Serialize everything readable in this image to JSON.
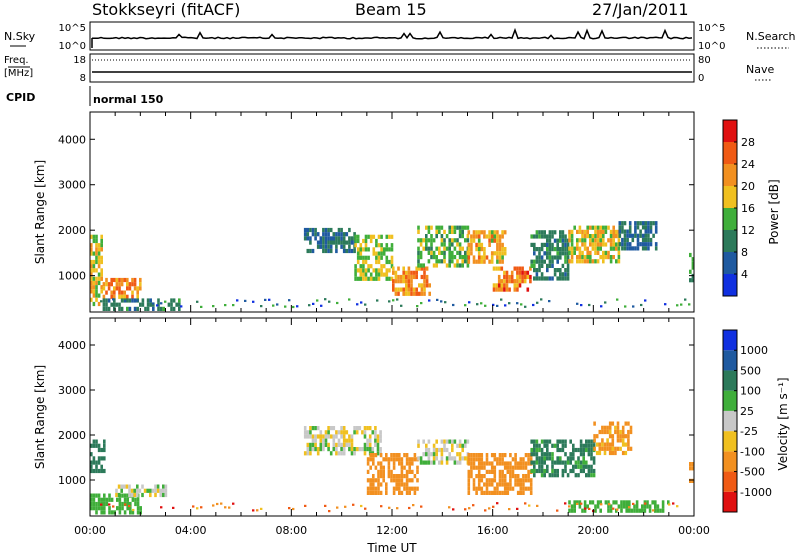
{
  "header": {
    "station": "Stokkseyri (fitACF)",
    "beam": "Beam 15",
    "date": "27/Jan/2011"
  },
  "nsky_panel": {
    "left_label": "N.Sky",
    "left_ticks": [
      "10^5",
      "10^0"
    ],
    "right_label": "N.Search",
    "right_ticks": [
      "10^5",
      "10^0"
    ]
  },
  "freq_panel": {
    "left_label_line1": "Freq.",
    "left_label_line2": "[MHz]",
    "left_ticks": [
      "18",
      "8"
    ],
    "right_label": "Nave",
    "right_ticks": [
      "80",
      "0"
    ]
  },
  "cpid": {
    "label": "CPID",
    "mode": "normal 150"
  },
  "colors": {
    "power_scale": [
      "#1030e0",
      "#1f5aa0",
      "#2c7a5a",
      "#3fae3a",
      "#f0c020",
      "#f29020",
      "#f05a14",
      "#e01010"
    ],
    "velocity_scale": [
      "#e01010",
      "#f05a14",
      "#f29020",
      "#f0c020",
      "#c8c8c8",
      "#3fae3a",
      "#2c7a5a",
      "#1f5aa0",
      "#1030e0"
    ]
  },
  "chart_data": [
    {
      "type": "heatmap",
      "panel": "power",
      "ylabel": "Slant Range [km]",
      "yticks": [
        "1000",
        "2000",
        "3000",
        "4000"
      ],
      "ylim": [
        200,
        4600
      ],
      "xlim": [
        0,
        24
      ],
      "colorbar": {
        "label": "Power [dB]",
        "ticks": [
          "4",
          "8",
          "12",
          "16",
          "20",
          "24",
          "28"
        ],
        "range": [
          0,
          32
        ]
      },
      "regions": [
        {
          "t0": 0.0,
          "t1": 0.5,
          "r0": 400,
          "r1": 1900,
          "value": 18
        },
        {
          "t0": 0.5,
          "t1": 2.0,
          "r0": 500,
          "r1": 950,
          "value": 22
        },
        {
          "t0": 0.5,
          "t1": 3.5,
          "r0": 250,
          "r1": 500,
          "value": 10
        },
        {
          "t0": 8.5,
          "t1": 10.5,
          "r0": 1550,
          "r1": 2050,
          "value": 8
        },
        {
          "t0": 10.5,
          "t1": 12.0,
          "r0": 950,
          "r1": 1900,
          "value": 16
        },
        {
          "t0": 12.0,
          "t1": 13.5,
          "r0": 600,
          "r1": 1200,
          "value": 22
        },
        {
          "t0": 13.0,
          "t1": 15.0,
          "r0": 1200,
          "r1": 2100,
          "value": 14
        },
        {
          "t0": 15.0,
          "t1": 16.5,
          "r0": 1300,
          "r1": 2000,
          "value": 20
        },
        {
          "t0": 16.0,
          "t1": 17.5,
          "r0": 650,
          "r1": 1200,
          "value": 24
        },
        {
          "t0": 17.5,
          "t1": 19.0,
          "r0": 900,
          "r1": 2000,
          "value": 10
        },
        {
          "t0": 19.0,
          "t1": 21.0,
          "r0": 1300,
          "r1": 2100,
          "value": 18
        },
        {
          "t0": 21.0,
          "t1": 22.5,
          "r0": 1600,
          "r1": 2200,
          "value": 8
        },
        {
          "t0": 23.8,
          "t1": 24.0,
          "r0": 900,
          "r1": 1500,
          "value": 12
        }
      ]
    },
    {
      "type": "heatmap",
      "panel": "velocity",
      "ylabel": "Slant Range [km]",
      "yticks": [
        "1000",
        "2000",
        "3000",
        "4000"
      ],
      "ylim": [
        200,
        4600
      ],
      "xlim": [
        0,
        24
      ],
      "xticks": [
        "00:00",
        "04:00",
        "08:00",
        "12:00",
        "16:00",
        "20:00",
        "00:00"
      ],
      "xlabel": "Time UT",
      "colorbar": {
        "label": "Velocity [m s⁻¹]",
        "ticks": [
          "1000",
          "500",
          "100",
          "25",
          "-25",
          "-100",
          "-500",
          "-1000"
        ],
        "range": [
          -1200,
          1200
        ]
      },
      "regions": [
        {
          "t0": 0.0,
          "t1": 0.6,
          "r0": 1200,
          "r1": 1900,
          "value": 300
        },
        {
          "t0": 0.0,
          "t1": 2.0,
          "r0": 300,
          "r1": 700,
          "value": 80
        },
        {
          "t0": 1.0,
          "t1": 3.0,
          "r0": 700,
          "r1": 900,
          "value": 0
        },
        {
          "t0": 8.5,
          "t1": 11.5,
          "r0": 1600,
          "r1": 2200,
          "value": 0
        },
        {
          "t0": 11.0,
          "t1": 13.0,
          "r0": 700,
          "r1": 1600,
          "value": -150
        },
        {
          "t0": 13.0,
          "t1": 15.0,
          "r0": 1400,
          "r1": 1900,
          "value": 0
        },
        {
          "t0": 15.0,
          "t1": 17.5,
          "r0": 700,
          "r1": 1600,
          "value": -300
        },
        {
          "t0": 17.5,
          "t1": 20.0,
          "r0": 1100,
          "r1": 1900,
          "value": 120
        },
        {
          "t0": 20.0,
          "t1": 21.5,
          "r0": 1600,
          "r1": 2300,
          "value": -120
        },
        {
          "t0": 19.0,
          "t1": 23.0,
          "r0": 350,
          "r1": 550,
          "value": 80
        },
        {
          "t0": 23.8,
          "t1": 24.0,
          "r0": 1000,
          "r1": 1400,
          "value": -200
        }
      ]
    }
  ]
}
